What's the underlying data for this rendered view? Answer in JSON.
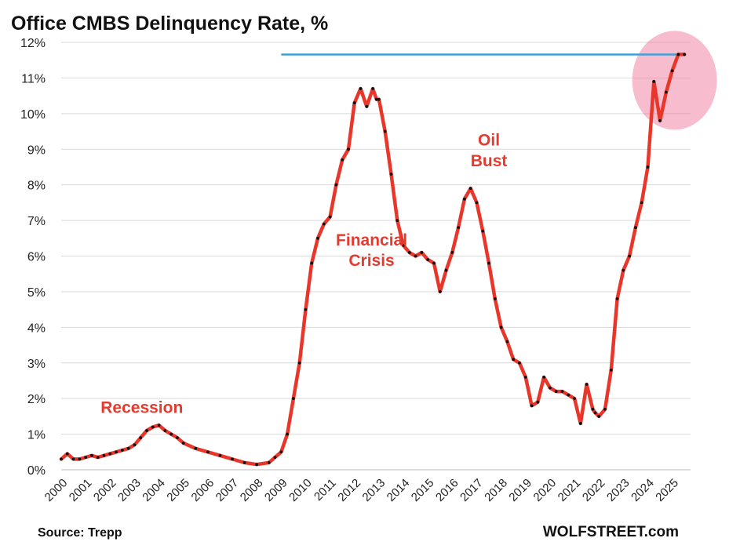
{
  "chart_data": {
    "type": "line",
    "title": "Office CMBS Delinquency Rate, %",
    "xlabel": "",
    "ylabel": "",
    "y_unit": "%",
    "ylim": [
      0,
      12
    ],
    "yticks": [
      0,
      1,
      2,
      3,
      4,
      5,
      6,
      7,
      8,
      9,
      10,
      11,
      12
    ],
    "ytick_labels": [
      "0%",
      "1%",
      "2%",
      "3%",
      "4%",
      "5%",
      "6%",
      "7%",
      "8%",
      "9%",
      "10%",
      "11%",
      "12%"
    ],
    "xlim": [
      2000,
      2025.75
    ],
    "xticks": [
      2000,
      2001,
      2002,
      2003,
      2004,
      2005,
      2006,
      2007,
      2008,
      2009,
      2010,
      2011,
      2012,
      2013,
      2014,
      2015,
      2016,
      2017,
      2018,
      2019,
      2020,
      2021,
      2022,
      2023,
      2024,
      2025
    ],
    "xtick_labels": [
      "2000",
      "2001",
      "2002",
      "2003",
      "2004",
      "2005",
      "2006",
      "2007",
      "2008",
      "2009",
      "2010",
      "2011",
      "2012",
      "2013",
      "2014",
      "2015",
      "2016",
      "2017",
      "2018",
      "2019",
      "2020",
      "2021",
      "2022",
      "2023",
      "2024",
      "2025"
    ],
    "grid": true,
    "series": [
      {
        "color": "#e8372a",
        "marker_color": "#111111",
        "x": [
          2000.0,
          2000.25,
          2000.5,
          2000.75,
          2001.0,
          2001.25,
          2001.5,
          2001.75,
          2002.0,
          2002.25,
          2002.5,
          2002.75,
          2003.0,
          2003.25,
          2003.5,
          2003.75,
          2004.0,
          2004.25,
          2004.5,
          2004.75,
          2005.0,
          2005.5,
          2006.0,
          2006.5,
          2007.0,
          2007.5,
          2008.0,
          2008.5,
          2008.75,
          2009.0,
          2009.25,
          2009.5,
          2009.75,
          2010.0,
          2010.25,
          2010.5,
          2010.75,
          2011.0,
          2011.25,
          2011.5,
          2011.75,
          2012.0,
          2012.25,
          2012.5,
          2012.75,
          2012.9,
          2013.0,
          2013.25,
          2013.5,
          2013.75,
          2014.0,
          2014.25,
          2014.5,
          2014.75,
          2015.0,
          2015.25,
          2015.5,
          2015.75,
          2016.0,
          2016.25,
          2016.5,
          2016.75,
          2017.0,
          2017.25,
          2017.5,
          2017.75,
          2018.0,
          2018.25,
          2018.5,
          2018.75,
          2019.0,
          2019.25,
          2019.5,
          2019.75,
          2020.0,
          2020.25,
          2020.5,
          2020.75,
          2021.0,
          2021.25,
          2021.5,
          2021.75,
          2021.85,
          2022.0,
          2022.25,
          2022.5,
          2022.75,
          2023.0,
          2023.25,
          2023.5,
          2023.75,
          2024.0,
          2024.25,
          2024.5,
          2024.75,
          2025.0,
          2025.25,
          2025.5
        ],
        "y": [
          0.3,
          0.45,
          0.3,
          0.3,
          0.35,
          0.4,
          0.35,
          0.4,
          0.45,
          0.5,
          0.55,
          0.6,
          0.7,
          0.9,
          1.1,
          1.2,
          1.25,
          1.1,
          1.0,
          0.9,
          0.75,
          0.6,
          0.5,
          0.4,
          0.3,
          0.2,
          0.15,
          0.2,
          0.35,
          0.5,
          1.0,
          2.0,
          3.0,
          4.5,
          5.8,
          6.5,
          6.9,
          7.1,
          8.0,
          8.7,
          9.0,
          10.3,
          10.7,
          10.2,
          10.7,
          10.4,
          10.4,
          9.5,
          8.3,
          7.0,
          6.3,
          6.1,
          6.0,
          6.1,
          5.9,
          5.8,
          5.0,
          5.6,
          6.1,
          6.8,
          7.6,
          7.9,
          7.5,
          6.7,
          5.8,
          4.8,
          4.0,
          3.6,
          3.1,
          3.0,
          2.6,
          1.8,
          1.9,
          2.6,
          2.3,
          2.2,
          2.2,
          2.1,
          2.0,
          1.3,
          2.4,
          1.7,
          1.6,
          1.5,
          1.7,
          2.8,
          4.8,
          5.6,
          6.0,
          6.8,
          7.5,
          8.5,
          10.9,
          9.8,
          10.6,
          11.2,
          11.66,
          11.66
        ]
      }
    ],
    "reference_line": {
      "y": 11.66,
      "x_start": 2009.0,
      "x_end": 2025.5,
      "color": "#3f9fd6"
    },
    "highlight_circle": {
      "x": 2025.0,
      "y": 11.0,
      "color": "#f06a94"
    },
    "annotations": [
      {
        "lines": [
          "Recession"
        ],
        "x": 2003.3,
        "y": 1.6,
        "color": "#e63a2e"
      },
      {
        "lines": [
          "Financial",
          "Crisis"
        ],
        "x": 2012.7,
        "y": 6.3,
        "color": "#e63a2e"
      },
      {
        "lines": [
          "Oil",
          "Bust"
        ],
        "x": 2017.5,
        "y": 9.1,
        "color": "#e63a2e"
      }
    ]
  },
  "footer": {
    "source": "Source: Trepp",
    "brand": "WOLFSTREET.com"
  }
}
